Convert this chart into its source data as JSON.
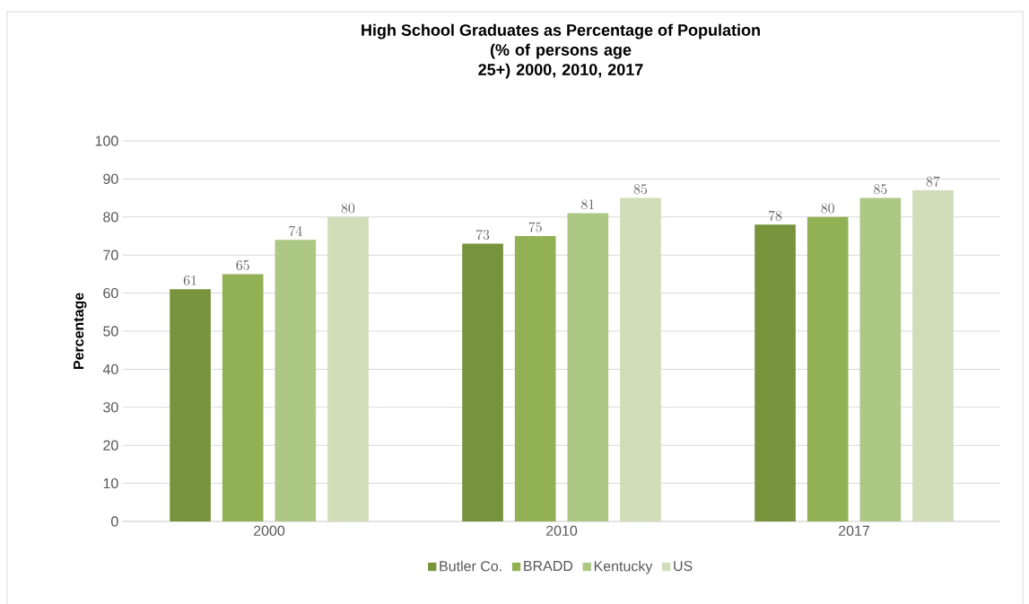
{
  "chart_data": {
    "type": "bar",
    "title": "High School Graduates as Percentage of Population",
    "subtitle": "(% of persons age 25+) 2000, 2010, 2017",
    "ylabel": "Percentage",
    "categories": [
      "2000",
      "2010",
      "2017"
    ],
    "series": [
      {
        "name": "Butler Co.",
        "color": "#77933c",
        "values": [
          61,
          73,
          78
        ]
      },
      {
        "name": "BRADD",
        "color": "#92b054",
        "values": [
          65,
          75,
          80
        ]
      },
      {
        "name": "Kentucky",
        "color": "#adc785",
        "values": [
          74,
          81,
          85
        ]
      },
      {
        "name": "US",
        "color": "#cfddb9",
        "values": [
          80,
          85,
          87
        ]
      }
    ],
    "ylim": [
      0,
      100
    ],
    "yticks": [
      0,
      10,
      20,
      30,
      40,
      50,
      60,
      70,
      80,
      90,
      100
    ],
    "grid": "y",
    "legend": "bottom",
    "data_labels": true
  }
}
